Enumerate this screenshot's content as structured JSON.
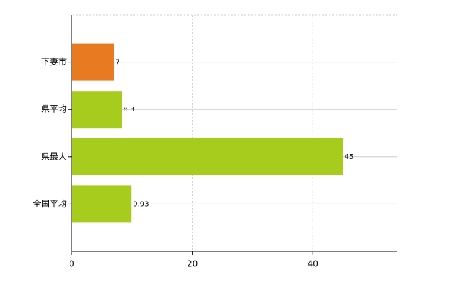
{
  "chart_data": {
    "type": "bar",
    "orientation": "horizontal",
    "categories": [
      "下妻市",
      "県平均",
      "県最大",
      "全国平均"
    ],
    "values": [
      7,
      8.3,
      45,
      9.93
    ],
    "colors": [
      "#e87b22",
      "#a7cc1e",
      "#a7cc1e",
      "#a7cc1e"
    ],
    "xlim": [
      0,
      54
    ],
    "xticks": [
      0,
      20,
      40
    ],
    "grid": true
  }
}
